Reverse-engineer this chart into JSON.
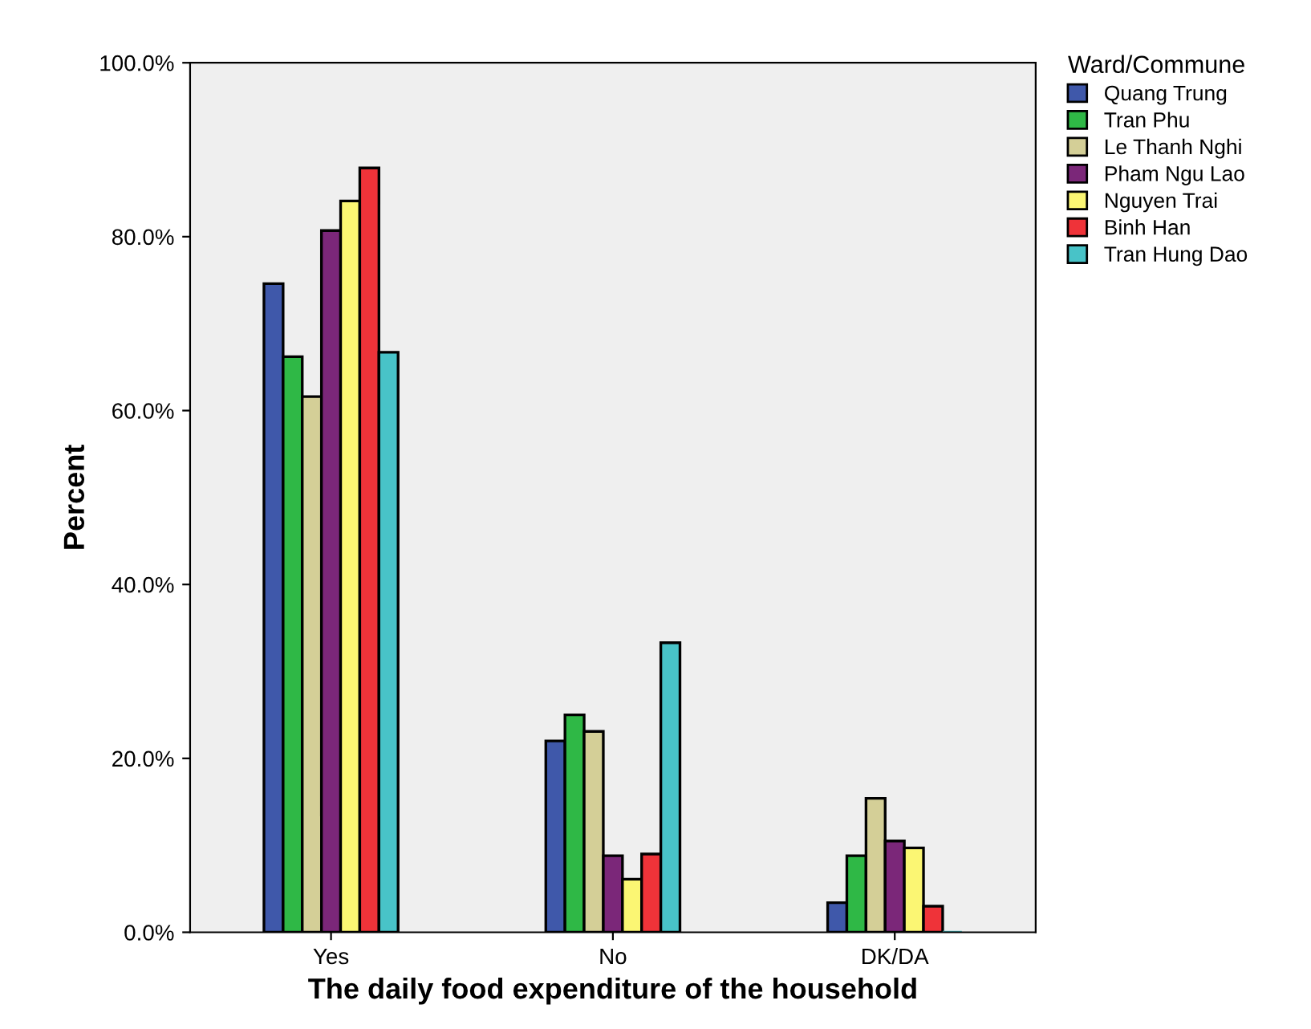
{
  "chart_data": {
    "type": "bar",
    "xlabel": "The daily food expenditure of the household",
    "ylabel": "Percent",
    "legend_title": "Ward/Commune",
    "categories": [
      "Yes",
      "No",
      "DK/DA"
    ],
    "series": [
      {
        "name": "Quang Trung",
        "color": "#3f58aa",
        "values": [
          74.6,
          22.0,
          3.4
        ]
      },
      {
        "name": "Tran Phu",
        "color": "#2fb846",
        "values": [
          66.2,
          25.0,
          8.8
        ]
      },
      {
        "name": "Le Thanh Nghi",
        "color": "#d4cf97",
        "values": [
          61.6,
          23.1,
          15.4
        ]
      },
      {
        "name": "Pham Ngu Lao",
        "color": "#7b2779",
        "values": [
          80.7,
          8.8,
          10.5
        ]
      },
      {
        "name": "Nguyen Trai",
        "color": "#fbf673",
        "values": [
          84.1,
          6.1,
          9.7
        ]
      },
      {
        "name": "Binh Han",
        "color": "#ef3339",
        "values": [
          87.9,
          9.0,
          3.0
        ]
      },
      {
        "name": "Tran Hung Dao",
        "color": "#48c3c8",
        "values": [
          66.7,
          33.3,
          0.0
        ]
      }
    ],
    "ylim": [
      0,
      100
    ],
    "yticks": [
      {
        "value": 0,
        "label": "0.0%"
      },
      {
        "value": 20,
        "label": "20.0%"
      },
      {
        "value": 40,
        "label": "40.0%"
      },
      {
        "value": 60,
        "label": "60.0%"
      },
      {
        "value": 80,
        "label": "80.0%"
      },
      {
        "value": 100,
        "label": "100.0%"
      }
    ],
    "grid": false,
    "legend": "top right"
  }
}
